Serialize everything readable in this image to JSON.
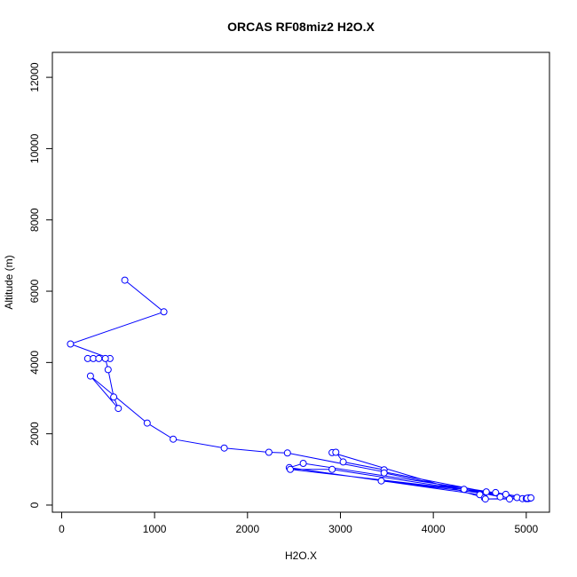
{
  "chart_data": {
    "type": "line",
    "title": "ORCAS RF08miz2 H2O.X",
    "xlabel": "H2O.X",
    "ylabel": "Altitude (m)",
    "xlim": [
      -100,
      5250
    ],
    "ylim": [
      -200,
      12700
    ],
    "x_ticks": [
      0,
      1000,
      2000,
      3000,
      4000,
      5000
    ],
    "y_ticks": [
      0,
      2000,
      4000,
      6000,
      8000,
      10000,
      12000
    ],
    "grid": false,
    "legend": "none",
    "series": [
      {
        "color": "#0000ff",
        "marker": "open-circle",
        "points": [
          [
            680,
            6310
          ],
          [
            1100,
            5420
          ],
          [
            95,
            4520
          ],
          [
            520,
            4110
          ],
          [
            280,
            4110
          ],
          [
            340,
            4110
          ],
          [
            400,
            4110
          ],
          [
            470,
            4110
          ],
          [
            500,
            3800
          ],
          [
            560,
            3030
          ],
          [
            610,
            2710
          ],
          [
            310,
            3620
          ],
          [
            920,
            2300
          ],
          [
            1200,
            1850
          ],
          [
            1750,
            1600
          ],
          [
            2230,
            1480
          ],
          [
            2430,
            1460
          ],
          [
            4570,
            370
          ],
          [
            5030,
            200
          ],
          [
            2600,
            1170
          ],
          [
            2450,
            1050
          ],
          [
            4500,
            290
          ],
          [
            4550,
            200
          ],
          [
            2910,
            1470
          ],
          [
            2950,
            1480
          ],
          [
            3030,
            1210
          ],
          [
            3470,
            990
          ],
          [
            3470,
            900
          ],
          [
            4720,
            230
          ],
          [
            4780,
            300
          ],
          [
            2460,
            1000
          ],
          [
            2910,
            1000
          ],
          [
            4900,
            210
          ],
          [
            4960,
            180
          ],
          [
            5020,
            180
          ],
          [
            3440,
            680
          ],
          [
            4330,
            440
          ],
          [
            4670,
            350
          ],
          [
            5040,
            190
          ],
          [
            4560,
            170
          ],
          [
            4820,
            170
          ],
          [
            5000,
            180
          ],
          [
            5010,
            190
          ],
          [
            5050,
            200
          ]
        ]
      }
    ]
  }
}
